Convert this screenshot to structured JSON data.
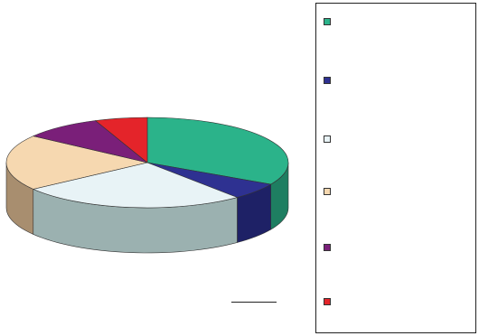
{
  "chart_data": {
    "type": "pie",
    "style": "3d",
    "categories": [
      "",
      "",
      "",
      "",
      "",
      ""
    ],
    "values": [
      33,
      6,
      26,
      20,
      9,
      6
    ],
    "colors": [
      "#2bb38a",
      "#2e3191",
      "#e8f3f6",
      "#f6d8b0",
      "#7a1f79",
      "#e4242a"
    ],
    "side_colors": [
      "#1e7e61",
      "#1e2166",
      "#9bb1b0",
      "#a88e6f",
      "#521452",
      "#9c1619"
    ],
    "legend_position": "right",
    "caption": ""
  }
}
